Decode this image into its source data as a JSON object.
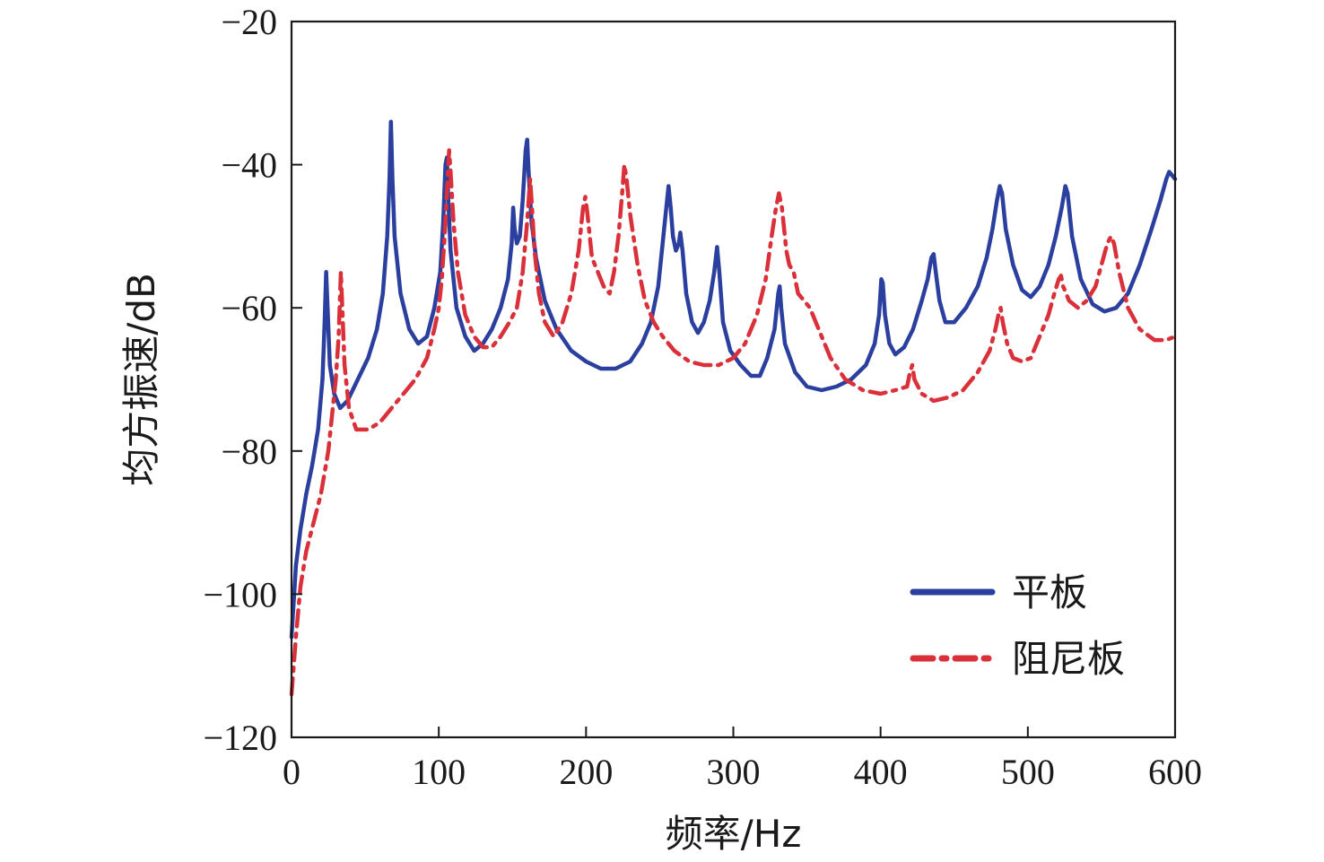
{
  "chart_data": {
    "type": "line",
    "title": "",
    "xlabel": "频率/Hz",
    "ylabel": "均方振速/dB",
    "xlim": [
      0,
      600
    ],
    "ylim": [
      -120,
      -20
    ],
    "xticks": [
      0,
      100,
      200,
      300,
      400,
      500,
      600
    ],
    "yticks": [
      -120,
      -100,
      -80,
      -60,
      -40,
      -20
    ],
    "xtick_labels": [
      "0",
      "100",
      "200",
      "300",
      "400",
      "500",
      "600"
    ],
    "ytick_labels": [
      "−120",
      "−100",
      "−80",
      "−60",
      "−40",
      "−20"
    ],
    "grid": false,
    "legend_position": "bottom-right",
    "series": [
      {
        "name": "平板",
        "color": "#2b3f9e",
        "style": "solid",
        "points": [
          [
            0,
            -106
          ],
          [
            3,
            -96
          ],
          [
            6,
            -91
          ],
          [
            10,
            -86
          ],
          [
            14,
            -82
          ],
          [
            18,
            -77
          ],
          [
            21,
            -70
          ],
          [
            22.5,
            -62
          ],
          [
            23.5,
            -55
          ],
          [
            24.5,
            -60
          ],
          [
            26,
            -68
          ],
          [
            29,
            -72
          ],
          [
            33,
            -74
          ],
          [
            38,
            -73
          ],
          [
            45,
            -70
          ],
          [
            52,
            -67
          ],
          [
            58,
            -63
          ],
          [
            62,
            -58
          ],
          [
            65,
            -50
          ],
          [
            66.5,
            -42
          ],
          [
            67.5,
            -34
          ],
          [
            68.5,
            -42
          ],
          [
            70,
            -50
          ],
          [
            74,
            -58
          ],
          [
            80,
            -63
          ],
          [
            86,
            -65
          ],
          [
            92,
            -64
          ],
          [
            97,
            -60
          ],
          [
            101,
            -55
          ],
          [
            103,
            -48
          ],
          [
            104.5,
            -40
          ],
          [
            105.5,
            -39
          ],
          [
            106.5,
            -45
          ],
          [
            108,
            -52
          ],
          [
            112,
            -60
          ],
          [
            118,
            -64
          ],
          [
            124,
            -66
          ],
          [
            130,
            -65
          ],
          [
            136,
            -63
          ],
          [
            142,
            -60
          ],
          [
            147,
            -56
          ],
          [
            149.5,
            -51
          ],
          [
            150.5,
            -46
          ],
          [
            151.5,
            -49
          ],
          [
            153,
            -51
          ],
          [
            155,
            -50
          ],
          [
            157,
            -45
          ],
          [
            159,
            -38
          ],
          [
            160,
            -36.5
          ],
          [
            161,
            -41
          ],
          [
            163,
            -48
          ],
          [
            166,
            -53
          ],
          [
            172,
            -59
          ],
          [
            180,
            -63
          ],
          [
            190,
            -66
          ],
          [
            200,
            -67.5
          ],
          [
            210,
            -68.5
          ],
          [
            220,
            -68.5
          ],
          [
            230,
            -67.5
          ],
          [
            238,
            -65
          ],
          [
            244,
            -62
          ],
          [
            249,
            -57
          ],
          [
            252,
            -51
          ],
          [
            254.5,
            -46
          ],
          [
            256,
            -43
          ],
          [
            257.5,
            -46
          ],
          [
            259,
            -50
          ],
          [
            261,
            -52
          ],
          [
            263,
            -51
          ],
          [
            264,
            -49.5
          ],
          [
            265.5,
            -52
          ],
          [
            268,
            -58
          ],
          [
            272,
            -62
          ],
          [
            276,
            -63.5
          ],
          [
            280,
            -62
          ],
          [
            284,
            -59
          ],
          [
            287,
            -55
          ],
          [
            289,
            -51.5
          ],
          [
            290.5,
            -55
          ],
          [
            293,
            -62
          ],
          [
            298,
            -66
          ],
          [
            305,
            -68
          ],
          [
            312,
            -69.5
          ],
          [
            318,
            -69.5
          ],
          [
            323,
            -67
          ],
          [
            328,
            -63
          ],
          [
            330.5,
            -58
          ],
          [
            331.5,
            -57
          ],
          [
            332.5,
            -60
          ],
          [
            335,
            -65
          ],
          [
            342,
            -69
          ],
          [
            350,
            -71
          ],
          [
            360,
            -71.5
          ],
          [
            370,
            -71
          ],
          [
            380,
            -70
          ],
          [
            390,
            -68
          ],
          [
            396,
            -65
          ],
          [
            399,
            -61
          ],
          [
            400.5,
            -56
          ],
          [
            401.5,
            -56.5
          ],
          [
            403,
            -61
          ],
          [
            406,
            -65
          ],
          [
            410,
            -66.5
          ],
          [
            416,
            -65.5
          ],
          [
            422,
            -63
          ],
          [
            428,
            -59
          ],
          [
            432,
            -56
          ],
          [
            434.5,
            -53
          ],
          [
            436,
            -52.5
          ],
          [
            437.5,
            -55
          ],
          [
            440,
            -59
          ],
          [
            444,
            -62
          ],
          [
            450,
            -62
          ],
          [
            458,
            -60
          ],
          [
            466,
            -57
          ],
          [
            472,
            -53
          ],
          [
            476,
            -49
          ],
          [
            479,
            -45
          ],
          [
            481,
            -43
          ],
          [
            482.5,
            -44
          ],
          [
            485,
            -49
          ],
          [
            490,
            -54
          ],
          [
            496,
            -57.5
          ],
          [
            502,
            -58.5
          ],
          [
            508,
            -57
          ],
          [
            514,
            -54
          ],
          [
            519,
            -50
          ],
          [
            523,
            -46
          ],
          [
            525.5,
            -43
          ],
          [
            527,
            -44
          ],
          [
            530,
            -50
          ],
          [
            536,
            -56
          ],
          [
            544,
            -59.5
          ],
          [
            552,
            -60.5
          ],
          [
            560,
            -60
          ],
          [
            568,
            -58
          ],
          [
            576,
            -54
          ],
          [
            584,
            -49
          ],
          [
            590,
            -45
          ],
          [
            594,
            -42
          ],
          [
            596,
            -41
          ],
          [
            598,
            -41.5
          ],
          [
            600,
            -42
          ]
        ]
      },
      {
        "name": "阻尼板",
        "color": "#d9303a",
        "style": "dashdot",
        "points": [
          [
            0,
            -114
          ],
          [
            3,
            -106
          ],
          [
            6,
            -99
          ],
          [
            10,
            -94
          ],
          [
            15,
            -90
          ],
          [
            20,
            -86
          ],
          [
            25,
            -80
          ],
          [
            28,
            -74
          ],
          [
            30,
            -70
          ],
          [
            32,
            -64
          ],
          [
            33.5,
            -55
          ],
          [
            34.5,
            -60
          ],
          [
            36,
            -68
          ],
          [
            39,
            -74
          ],
          [
            44,
            -77
          ],
          [
            52,
            -77
          ],
          [
            60,
            -76
          ],
          [
            68,
            -74
          ],
          [
            76,
            -72
          ],
          [
            84,
            -70
          ],
          [
            92,
            -67
          ],
          [
            97,
            -63
          ],
          [
            100,
            -60
          ],
          [
            102,
            -56
          ],
          [
            104,
            -50
          ],
          [
            106,
            -42
          ],
          [
            107,
            -38
          ],
          [
            108,
            -41
          ],
          [
            110,
            -48
          ],
          [
            113,
            -55
          ],
          [
            118,
            -61
          ],
          [
            124,
            -64
          ],
          [
            130,
            -65.5
          ],
          [
            136,
            -65.5
          ],
          [
            142,
            -64
          ],
          [
            148,
            -62
          ],
          [
            153,
            -60
          ],
          [
            157,
            -55
          ],
          [
            160,
            -48
          ],
          [
            162,
            -42
          ],
          [
            163,
            -45
          ],
          [
            165,
            -52
          ],
          [
            168,
            -58
          ],
          [
            172,
            -62
          ],
          [
            178,
            -64
          ],
          [
            184,
            -62
          ],
          [
            190,
            -58
          ],
          [
            195,
            -52
          ],
          [
            198,
            -46
          ],
          [
            199.5,
            -44.5
          ],
          [
            201,
            -47
          ],
          [
            204,
            -53
          ],
          [
            208,
            -55
          ],
          [
            212,
            -57
          ],
          [
            216,
            -58
          ],
          [
            219,
            -55
          ],
          [
            222,
            -50
          ],
          [
            224.5,
            -44
          ],
          [
            226,
            -40
          ],
          [
            227.5,
            -42
          ],
          [
            230,
            -47
          ],
          [
            235,
            -54
          ],
          [
            240,
            -59
          ],
          [
            246,
            -62
          ],
          [
            252,
            -64
          ],
          [
            260,
            -66
          ],
          [
            270,
            -67.5
          ],
          [
            280,
            -68
          ],
          [
            290,
            -68
          ],
          [
            300,
            -67
          ],
          [
            308,
            -65
          ],
          [
            316,
            -61
          ],
          [
            322,
            -56
          ],
          [
            326,
            -50
          ],
          [
            329,
            -46
          ],
          [
            331,
            -44
          ],
          [
            333,
            -46
          ],
          [
            336,
            -52
          ],
          [
            338,
            -54
          ],
          [
            341,
            -55
          ],
          [
            344,
            -58
          ],
          [
            348,
            -59
          ],
          [
            352,
            -60
          ],
          [
            358,
            -63
          ],
          [
            366,
            -67
          ],
          [
            376,
            -70
          ],
          [
            388,
            -71.5
          ],
          [
            400,
            -72
          ],
          [
            410,
            -71.5
          ],
          [
            418,
            -71
          ],
          [
            420,
            -69
          ],
          [
            421.5,
            -68
          ],
          [
            423,
            -70
          ],
          [
            428,
            -72
          ],
          [
            436,
            -73
          ],
          [
            446,
            -72.5
          ],
          [
            456,
            -71.5
          ],
          [
            466,
            -69
          ],
          [
            474,
            -66
          ],
          [
            478,
            -63
          ],
          [
            480,
            -61
          ],
          [
            481.5,
            -60
          ],
          [
            483,
            -62
          ],
          [
            486,
            -65
          ],
          [
            490,
            -67
          ],
          [
            496,
            -67.5
          ],
          [
            502,
            -67
          ],
          [
            508,
            -64
          ],
          [
            514,
            -61
          ],
          [
            518,
            -58
          ],
          [
            521,
            -56
          ],
          [
            522.5,
            -55.5
          ],
          [
            524,
            -57
          ],
          [
            528,
            -59
          ],
          [
            534,
            -60
          ],
          [
            540,
            -59
          ],
          [
            546,
            -57
          ],
          [
            550,
            -54
          ],
          [
            554,
            -51
          ],
          [
            556.5,
            -50
          ],
          [
            558.5,
            -51
          ],
          [
            562,
            -55
          ],
          [
            568,
            -60
          ],
          [
            576,
            -63
          ],
          [
            586,
            -64.5
          ],
          [
            594,
            -64.5
          ],
          [
            600,
            -64
          ]
        ]
      }
    ]
  }
}
